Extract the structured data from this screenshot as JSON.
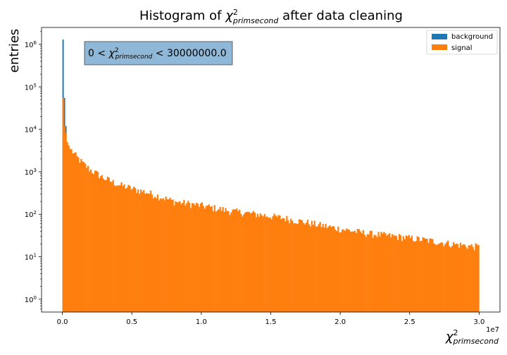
{
  "chart_data": {
    "type": "histogram",
    "title_prefix": "Histogram of ",
    "title_symbol": "χ",
    "title_sup": "2",
    "title_sub": "primsecond",
    "title_suffix": " after data cleaning",
    "xlabel_symbol": "χ",
    "xlabel_sup": "2",
    "xlabel_sub": "primsecond",
    "ylabel": "entries",
    "x_offset_label": "1e7",
    "annotation_prefix": "0 < ",
    "annotation_symbol": "χ",
    "annotation_sup": "2",
    "annotation_sub": "primsecond",
    "annotation_suffix": " < 30000000.0",
    "x_scale": "linear",
    "y_scale": "log",
    "xlim": [
      -1500000,
      31500000
    ],
    "ylim": [
      0.5,
      2500000
    ],
    "x_ticks": [
      0,
      5000000,
      10000000,
      15000000,
      20000000,
      25000000,
      30000000
    ],
    "x_tick_labels": [
      "0.0",
      "0.5",
      "1.0",
      "1.5",
      "2.0",
      "2.5",
      "3.0"
    ],
    "y_ticks": [
      1,
      10,
      100,
      1000,
      10000,
      100000,
      1000000
    ],
    "y_tick_base": "10",
    "y_tick_exponents": [
      "0",
      "1",
      "2",
      "3",
      "4",
      "5",
      "6"
    ],
    "bins": 300,
    "range": [
      0,
      30000000
    ],
    "legend_position": "upper-right",
    "grid": false,
    "series": [
      {
        "name": "background",
        "color": "#1f77b4",
        "peak_bins": [
          [
            0,
            1300000
          ],
          [
            1,
            55000
          ],
          [
            2,
            12000
          ]
        ],
        "spikes": [
          [
            237,
            13
          ],
          [
            276,
            20
          ],
          [
            282,
            14
          ]
        ]
      },
      {
        "name": "signal",
        "color": "#ff7f0e",
        "profile": [
          [
            0,
            55000
          ],
          [
            1,
            12000
          ],
          [
            2,
            8000
          ],
          [
            3,
            5000
          ],
          [
            5,
            3500
          ],
          [
            10,
            2200
          ],
          [
            15,
            1500
          ],
          [
            20,
            1100
          ],
          [
            30,
            700
          ],
          [
            40,
            500
          ],
          [
            50,
            400
          ],
          [
            60,
            330
          ],
          [
            70,
            260
          ],
          [
            80,
            200
          ],
          [
            100,
            160
          ],
          [
            120,
            120
          ],
          [
            140,
            100
          ],
          [
            160,
            80
          ],
          [
            180,
            60
          ],
          [
            200,
            45
          ],
          [
            220,
            35
          ],
          [
            240,
            30
          ],
          [
            260,
            25
          ],
          [
            280,
            20
          ],
          [
            299,
            17
          ]
        ]
      }
    ]
  }
}
